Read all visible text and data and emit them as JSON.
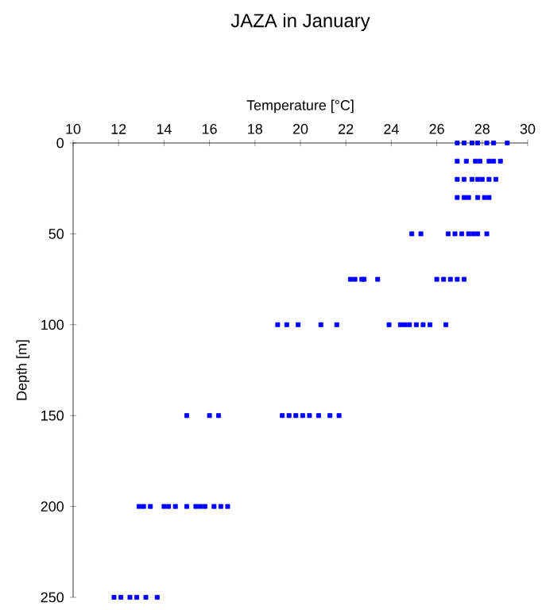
{
  "chart_data": {
    "type": "scatter",
    "title": "JAZA in January",
    "xlabel": "Temperature [°C]",
    "ylabel": "Depth [m]",
    "xlim": [
      10,
      30
    ],
    "xticks": [
      10,
      12,
      14,
      16,
      18,
      20,
      22,
      24,
      26,
      28,
      30
    ],
    "ylim": [
      250,
      0
    ],
    "yticks": [
      0,
      50,
      100,
      150,
      200,
      250
    ],
    "marker": "square",
    "series": [
      {
        "color": "#0000ff",
        "x": [
          26.9,
          27.2,
          27.55,
          27.8,
          28.2,
          28.5,
          29.1,
          26.9,
          27.3,
          27.7,
          27.9,
          28.3,
          28.5,
          28.8,
          26.9,
          27.2,
          27.55,
          27.8,
          28.0,
          28.3,
          28.6,
          26.9,
          27.2,
          27.4,
          27.8,
          28.1,
          28.3,
          24.9,
          25.3,
          26.5,
          26.8,
          27.1,
          27.4,
          27.6,
          27.8,
          28.2,
          22.2,
          22.4,
          22.7,
          22.8,
          23.4,
          26.0,
          26.3,
          26.6,
          26.9,
          27.2,
          19.0,
          19.4,
          19.9,
          20.9,
          21.6,
          23.9,
          24.4,
          24.6,
          24.8,
          25.1,
          25.4,
          25.7,
          26.4,
          15.0,
          16.0,
          16.4,
          19.2,
          19.5,
          19.8,
          20.1,
          20.4,
          20.8,
          21.3,
          21.7,
          12.9,
          13.1,
          13.4,
          14.0,
          14.2,
          14.5,
          15.0,
          15.4,
          15.6,
          15.8,
          16.2,
          16.5,
          16.8,
          11.8,
          12.1,
          12.5,
          12.8,
          13.2,
          13.7
        ],
        "values": [
          0,
          0,
          0,
          0,
          0,
          0,
          0,
          10,
          10,
          10,
          10,
          10,
          10,
          10,
          20,
          20,
          20,
          20,
          20,
          20,
          20,
          30,
          30,
          30,
          30,
          30,
          30,
          50,
          50,
          50,
          50,
          50,
          50,
          50,
          50,
          50,
          75,
          75,
          75,
          75,
          75,
          75,
          75,
          75,
          75,
          75,
          100,
          100,
          100,
          100,
          100,
          100,
          100,
          100,
          100,
          100,
          100,
          100,
          100,
          150,
          150,
          150,
          150,
          150,
          150,
          150,
          150,
          150,
          150,
          150,
          200,
          200,
          200,
          200,
          200,
          200,
          200,
          200,
          200,
          200,
          200,
          200,
          200,
          250,
          250,
          250,
          250,
          250,
          250
        ]
      }
    ]
  }
}
